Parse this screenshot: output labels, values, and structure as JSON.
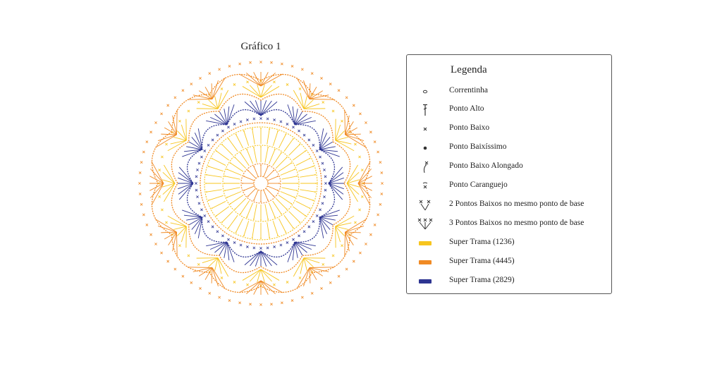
{
  "title": "Gráfico 1",
  "legend": {
    "title": "Legenda",
    "items": [
      {
        "icon": "chain-stitch-icon",
        "label": "Correntinha"
      },
      {
        "icon": "double-crochet-icon",
        "label": "Ponto Alto"
      },
      {
        "icon": "single-crochet-icon",
        "label": "Ponto Baixo"
      },
      {
        "icon": "slip-stitch-icon",
        "label": "Ponto Baixíssimo"
      },
      {
        "icon": "long-single-crochet-icon",
        "label": "Ponto Baixo Alongado"
      },
      {
        "icon": "crab-stitch-icon",
        "label": "Ponto Caranguejo"
      },
      {
        "icon": "two-sc-same-base-icon",
        "label": "2 Pontos Baixos no mesmo ponto de base"
      },
      {
        "icon": "three-sc-same-base-icon",
        "label": "3 Pontos Baixos no mesmo ponto de base"
      },
      {
        "icon": "yellow-swatch",
        "label": "Super Trama (1236)",
        "color": "#f7c51e"
      },
      {
        "icon": "orange-swatch",
        "label": "Super Trama (4445)",
        "color": "#f08a24"
      },
      {
        "icon": "blue-swatch",
        "label": "Super Trama (2829)",
        "color": "#2e3592"
      }
    ]
  },
  "colors": {
    "yellow": "#f7c51e",
    "orange": "#f08a24",
    "blue": "#2e3592"
  }
}
